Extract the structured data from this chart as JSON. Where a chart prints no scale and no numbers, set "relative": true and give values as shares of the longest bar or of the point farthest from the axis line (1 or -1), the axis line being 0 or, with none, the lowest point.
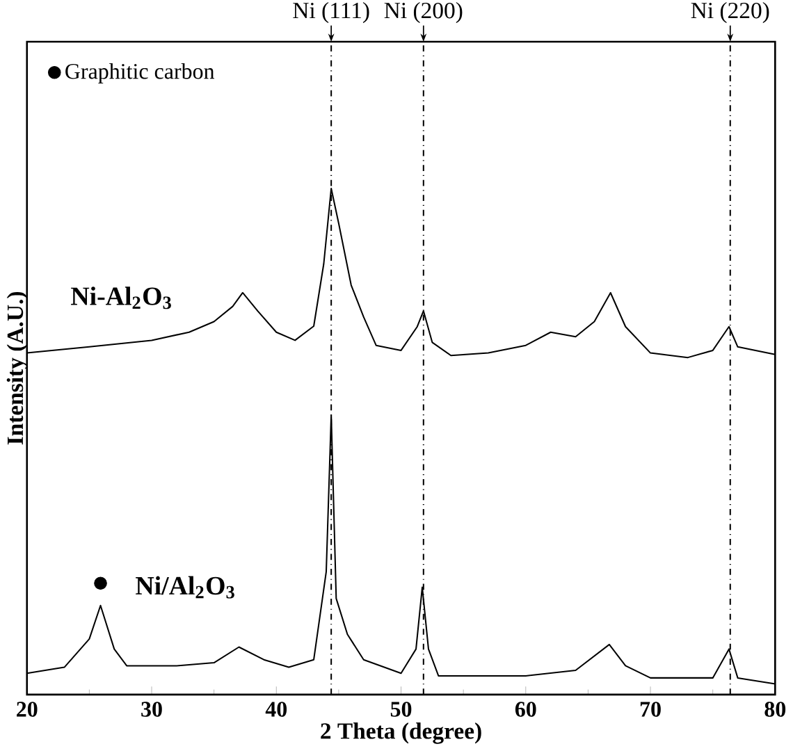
{
  "chart_data": {
    "type": "line",
    "relative": true,
    "xlabel": "2 Theta (degree)",
    "ylabel": "Intensity (A.U.)",
    "xlim": [
      20,
      80
    ],
    "xticks": [
      20,
      30,
      40,
      50,
      60,
      70,
      80
    ],
    "tick_labels": "x",
    "legend": "top left",
    "series": [
      {
        "name": "Ni-Al$_{2}$O$_{3}$",
        "color": "#000000",
        "x": [
          20,
          25,
          30,
          33,
          35,
          36.5,
          37.3,
          38.5,
          40,
          41.5,
          43,
          43.8,
          44.4,
          45,
          46,
          47,
          48,
          50,
          51.3,
          51.8,
          52.5,
          54,
          57,
          60,
          62,
          64,
          65.5,
          66.8,
          68,
          70,
          73,
          75,
          76.3,
          77,
          80
        ],
        "values": [
          0.675,
          0.687,
          0.7,
          0.716,
          0.737,
          0.767,
          0.794,
          0.758,
          0.716,
          0.7,
          0.728,
          0.851,
          1.0,
          0.931,
          0.809,
          0.746,
          0.69,
          0.68,
          0.727,
          0.758,
          0.696,
          0.67,
          0.675,
          0.69,
          0.716,
          0.707,
          0.737,
          0.794,
          0.727,
          0.675,
          0.666,
          0.68,
          0.727,
          0.687,
          0.672
        ]
      },
      {
        "name": "Ni/Al$_{2}$O$_{3}$",
        "color": "#000000",
        "x": [
          20,
          23,
          25,
          25.9,
          27,
          28,
          32,
          35,
          37,
          39,
          41,
          43,
          44,
          44.4,
          44.8,
          45.7,
          47,
          50,
          51.2,
          51.7,
          52.2,
          53,
          60,
          64,
          66.7,
          68,
          70,
          75,
          76.3,
          77,
          80
        ],
        "values": [
          0.042,
          0.054,
          0.11,
          0.176,
          0.09,
          0.057,
          0.057,
          0.063,
          0.094,
          0.069,
          0.054,
          0.069,
          0.243,
          0.552,
          0.19,
          0.119,
          0.069,
          0.042,
          0.09,
          0.212,
          0.09,
          0.037,
          0.037,
          0.048,
          0.099,
          0.057,
          0.033,
          0.033,
          0.09,
          0.033,
          0.021
        ]
      },
      {
        "name": "Graphitic carbon",
        "type": "scatter",
        "marker": "circle",
        "color": "#000000",
        "x": [
          25.9
        ],
        "values": [
          0.22
        ]
      }
    ],
    "ref_lines": [
      {
        "axis": "x",
        "value": 44.4,
        "label": "Ni (111)",
        "line_style": "dashed",
        "color": "#000000"
      },
      {
        "axis": "x",
        "value": 51.8,
        "label": "Ni (200)",
        "line_style": "dashed",
        "color": "#000000"
      },
      {
        "axis": "x",
        "value": 76.4,
        "label": "Ni (220)",
        "line_style": "dashed",
        "color": "#000000"
      }
    ]
  }
}
